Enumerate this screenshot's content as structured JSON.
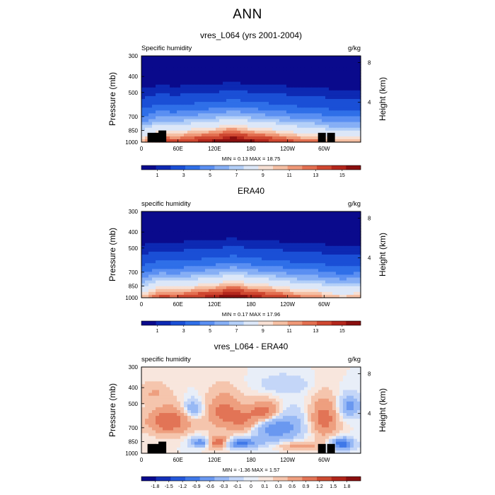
{
  "page": {
    "title": "ANN"
  },
  "colors": {
    "sequential": [
      "#0a0a8c",
      "#0d29b3",
      "#1a4fd6",
      "#2f6fe8",
      "#5a8ff2",
      "#86aff5",
      "#b3cff8",
      "#dce7f8",
      "#f7e0d4",
      "#f5bfa3",
      "#ef9877",
      "#e36f50",
      "#cf4730",
      "#b3261c",
      "#8a0f0f"
    ],
    "diverging": [
      "#0a0a8c",
      "#1430b8",
      "#2457d9",
      "#3f78e8",
      "#6a98f0",
      "#98b9f5",
      "#c4d6f8",
      "#e8eef8",
      "#f8e6dd",
      "#f5c5ad",
      "#ee9f7f",
      "#e27456",
      "#cc4a31",
      "#b0251a",
      "#8a0f0f"
    ],
    "land": "#000000"
  },
  "chart_data": [
    {
      "type": "heatmap",
      "title": "vres_L064 (yrs 2001-2004)",
      "left_label": "Specific humidity",
      "right_label": "g/kg",
      "xlabel": "",
      "ylabel": "Pressure (mb)",
      "ylabel_right": "Height (km)",
      "x_ticks": [
        "0",
        "60E",
        "120E",
        "180",
        "120W",
        "60W"
      ],
      "x_tick_values": [
        0,
        60,
        120,
        180,
        240,
        300
      ],
      "xlim": [
        0,
        360
      ],
      "y_ticks": [
        "300",
        "400",
        "500",
        "700",
        "850",
        "1000"
      ],
      "y_tick_values": [
        300,
        400,
        500,
        700,
        850,
        1000
      ],
      "ylim": [
        1000,
        300
      ],
      "height_ticks": [
        "8",
        "4"
      ],
      "height_tick_values": [
        8,
        4
      ],
      "stats": "MIN =   0.13  MAX =  18.75",
      "min": 0.13,
      "max": 18.75,
      "colorbar": {
        "levels": [
          0.5,
          1,
          1.5,
          2,
          3,
          4,
          5,
          6,
          7,
          8,
          9,
          10,
          11,
          12,
          13,
          14,
          15
        ],
        "labels": [
          "1",
          "3",
          "5",
          "7",
          "9",
          "11",
          "13",
          "15"
        ],
        "label_values": [
          1,
          3,
          5,
          7,
          9,
          11,
          13,
          15
        ]
      },
      "field": {
        "model": "humidity",
        "surface_q": 15.5,
        "tropics": [
          [
            30,
            18.5
          ],
          [
            150,
            17.5
          ],
          [
            285,
            17
          ]
        ]
      },
      "land": [
        [
          10,
          878,
          1000
        ],
        [
          22,
          878,
          1000
        ],
        [
          28,
          850,
          1000
        ],
        [
          290,
          878,
          1000
        ],
        [
          305,
          878,
          1000
        ]
      ]
    },
    {
      "type": "heatmap",
      "title": "ERA40",
      "left_label": "specific humidity",
      "right_label": "g/kg",
      "xlabel": "",
      "ylabel": "Pressure (mb)",
      "ylabel_right": "Height (km)",
      "x_ticks": [
        "0",
        "60E",
        "120E",
        "180",
        "120W",
        "60W"
      ],
      "x_tick_values": [
        0,
        60,
        120,
        180,
        240,
        300
      ],
      "xlim": [
        0,
        360
      ],
      "y_ticks": [
        "300",
        "400",
        "500",
        "700",
        "850",
        "1000"
      ],
      "y_tick_values": [
        300,
        400,
        500,
        700,
        850,
        1000
      ],
      "ylim": [
        1000,
        300
      ],
      "height_ticks": [
        "8",
        "4"
      ],
      "height_tick_values": [
        8,
        4
      ],
      "stats": "MIN =   0.17  MAX =  17.96",
      "min": 0.17,
      "max": 17.96,
      "colorbar": {
        "levels": [
          0.5,
          1,
          1.5,
          2,
          3,
          4,
          5,
          6,
          7,
          8,
          9,
          10,
          11,
          12,
          13,
          14,
          15
        ],
        "labels": [
          "1",
          "3",
          "5",
          "7",
          "9",
          "11",
          "13",
          "15"
        ],
        "label_values": [
          1,
          3,
          5,
          7,
          9,
          11,
          13,
          15
        ]
      },
      "field": {
        "model": "humidity",
        "surface_q": 15,
        "tropics": [
          [
            30,
            17.5
          ],
          [
            150,
            17
          ],
          [
            285,
            16.5
          ]
        ]
      },
      "land": []
    },
    {
      "type": "heatmap",
      "title": "vres_L064 - ERA40",
      "left_label": "specific humidity",
      "right_label": "g/kg",
      "xlabel": "",
      "ylabel": "Pressure (mb)",
      "ylabel_right": "Height (km)",
      "x_ticks": [
        "0",
        "60E",
        "120E",
        "180",
        "120W",
        "60W"
      ],
      "x_tick_values": [
        0,
        60,
        120,
        180,
        240,
        300
      ],
      "xlim": [
        0,
        360
      ],
      "y_ticks": [
        "300",
        "400",
        "500",
        "700",
        "850",
        "1000"
      ],
      "y_tick_values": [
        300,
        400,
        500,
        700,
        850,
        1000
      ],
      "ylim": [
        1000,
        300
      ],
      "height_ticks": [
        "8",
        "4"
      ],
      "height_tick_values": [
        8,
        4
      ],
      "stats": "MIN =  -1.36  MAX =   1.57",
      "min": -1.36,
      "max": 1.57,
      "colorbar": {
        "levels": [
          -1.8,
          -1.5,
          -1.2,
          -0.9,
          -0.6,
          -0.3,
          -0.1,
          0,
          0.1,
          0.3,
          0.6,
          0.9,
          1.2,
          1.5,
          1.8
        ],
        "labels": [
          "-1.8",
          "-1.5",
          "-1.2",
          "-0.9",
          "-0.6",
          "-0.3",
          "-0.1",
          "0",
          "0.1",
          "0.3",
          "0.6",
          "0.9",
          "1.2",
          "1.5",
          "1.8"
        ],
        "label_values": [
          -1.8,
          -1.5,
          -1.2,
          -0.9,
          -0.6,
          -0.3,
          -0.1,
          0,
          0.1,
          0.3,
          0.6,
          0.9,
          1.2,
          1.5,
          1.8
        ]
      },
      "field": {
        "model": "difference",
        "blobs": [
          [
            45,
            640,
            35,
            120,
            0.9
          ],
          [
            135,
            560,
            28,
            140,
            0.7
          ],
          [
            125,
            860,
            22,
            70,
            1.2
          ],
          [
            160,
            870,
            30,
            60,
            -1.1
          ],
          [
            100,
            860,
            18,
            60,
            -1.0
          ],
          [
            220,
            680,
            40,
            150,
            -1.0
          ],
          [
            205,
            570,
            28,
            90,
            1.1
          ],
          [
            170,
            650,
            25,
            110,
            0.6
          ],
          [
            330,
            880,
            18,
            70,
            -1.2
          ],
          [
            300,
            620,
            22,
            160,
            0.8
          ],
          [
            342,
            520,
            18,
            80,
            -0.7
          ],
          [
            20,
            430,
            25,
            60,
            0.3
          ],
          [
            260,
            900,
            35,
            50,
            0.5
          ],
          [
            85,
            540,
            16,
            70,
            -0.6
          ],
          [
            235,
            380,
            40,
            50,
            -0.25
          ]
        ]
      },
      "land": [
        [
          10,
          878,
          1000
        ],
        [
          22,
          878,
          1000
        ],
        [
          28,
          850,
          1000
        ],
        [
          290,
          878,
          1000
        ],
        [
          305,
          878,
          1000
        ]
      ]
    }
  ]
}
